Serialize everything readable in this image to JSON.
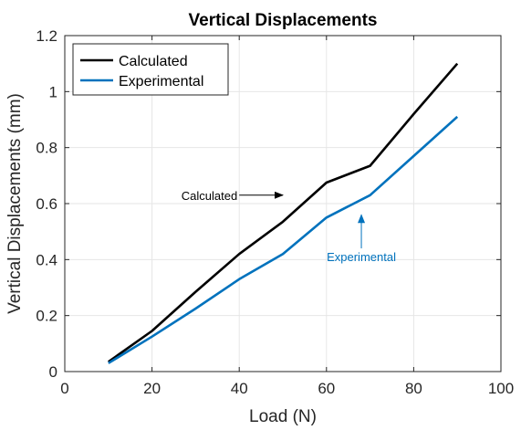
{
  "chart_data": {
    "type": "line",
    "title": "Vertical Displacements",
    "xlabel": "Load (N)",
    "ylabel": "Vertical Displacements (mm)",
    "xlim": [
      0,
      100
    ],
    "ylim": [
      0,
      1.2
    ],
    "xticks": [
      0,
      20,
      40,
      60,
      80,
      100
    ],
    "yticks": [
      0,
      0.2,
      0.4,
      0.6,
      0.8,
      1,
      1.2
    ],
    "xtick_labels": [
      "0",
      "20",
      "40",
      "60",
      "80",
      "100"
    ],
    "ytick_labels": [
      "0",
      "0.2",
      "0.4",
      "0.6",
      "0.8",
      "1",
      "1.2"
    ],
    "grid": true,
    "legend_position": "top-left",
    "series": [
      {
        "name": "Calculated",
        "color": "#000000",
        "x": [
          10,
          20,
          30,
          40,
          50,
          60,
          70,
          80,
          90
        ],
        "y": [
          0.035,
          0.145,
          0.285,
          0.42,
          0.535,
          0.675,
          0.735,
          0.92,
          1.1
        ]
      },
      {
        "name": "Experimental",
        "color": "#0072BD",
        "x": [
          10,
          20,
          30,
          40,
          50,
          60,
          70,
          80,
          90
        ],
        "y": [
          0.03,
          0.125,
          0.225,
          0.33,
          0.42,
          0.55,
          0.63,
          0.77,
          0.91
        ]
      }
    ],
    "annotations": [
      {
        "text": "Calculated",
        "color": "#000000",
        "arrow_to": [
          50,
          0.63
        ],
        "arrow_from": [
          40,
          0.63
        ]
      },
      {
        "text": "Experimental",
        "color": "#0072BD",
        "arrow_to": [
          68,
          0.56
        ],
        "arrow_from": [
          68,
          0.44
        ]
      }
    ]
  }
}
